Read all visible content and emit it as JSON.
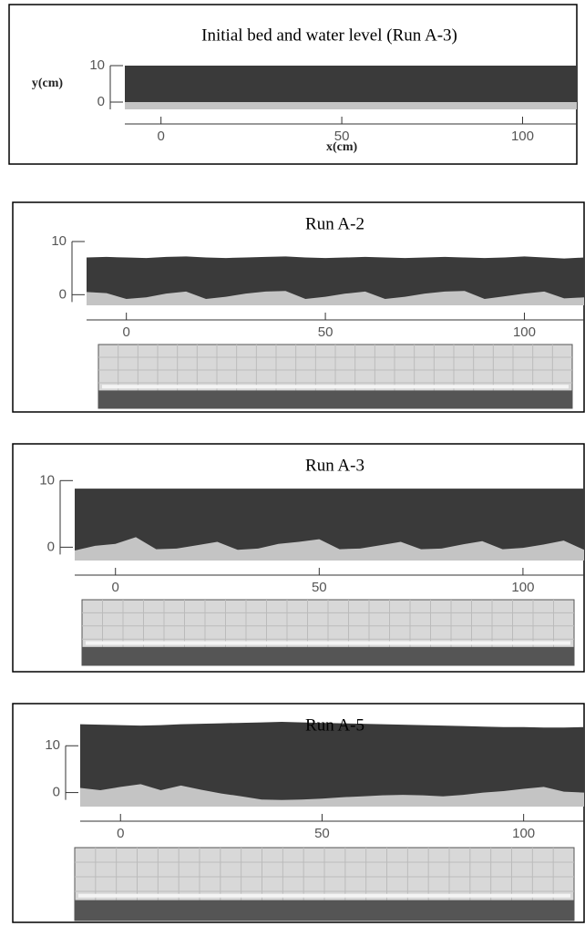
{
  "chart_data": [
    {
      "type": "area",
      "title": "Initial bed and water level (Run A-3)",
      "x_label": "x(cm)",
      "y_label": "y(cm)",
      "x": [
        -10,
        -5,
        0,
        5,
        10,
        15,
        20,
        25,
        30,
        35,
        40,
        45,
        50,
        55,
        60,
        65,
        70,
        75,
        80,
        85,
        90,
        95,
        100,
        105,
        110,
        115
      ],
      "series": [
        {
          "color": "#3a3a3a",
          "values": [
            10,
            10,
            10,
            10,
            10,
            10,
            10,
            10,
            10,
            10,
            10,
            10,
            10,
            10,
            10,
            10,
            10,
            10,
            10,
            10,
            10,
            10,
            10,
            10,
            10,
            10
          ]
        },
        {
          "color": "#c4c4c4",
          "values": [
            0,
            0,
            0,
            0,
            0,
            0,
            0,
            0,
            0,
            0,
            0,
            0,
            0,
            0,
            0,
            0,
            0,
            0,
            0,
            0,
            0,
            0,
            0,
            0,
            0,
            0
          ]
        }
      ],
      "xlim": [
        -10,
        115
      ],
      "ylim": [
        -2,
        10.5
      ],
      "xticks": [
        0,
        50,
        100
      ],
      "yticks": [
        0,
        10
      ]
    },
    {
      "type": "area",
      "title": "Run A-2",
      "x": [
        -10,
        -5,
        0,
        5,
        10,
        15,
        20,
        25,
        30,
        35,
        40,
        45,
        50,
        55,
        60,
        65,
        70,
        75,
        80,
        85,
        90,
        95,
        100,
        105,
        110,
        115
      ],
      "series": [
        {
          "color": "#3a3a3a",
          "values": [
            7,
            7.1,
            7,
            6.9,
            7.1,
            7.2,
            7,
            6.9,
            7,
            7.1,
            7.2,
            7,
            6.9,
            7,
            7.1,
            7,
            6.9,
            7,
            7.1,
            7,
            6.9,
            7,
            7.2,
            7,
            6.8,
            7
          ]
        },
        {
          "color": "#c4c4c4",
          "values": [
            0.5,
            0.3,
            -0.8,
            -0.5,
            0.2,
            0.6,
            -0.8,
            -0.4,
            0.2,
            0.6,
            0.7,
            -0.8,
            -0.4,
            0.2,
            0.6,
            -0.8,
            -0.4,
            0.2,
            0.6,
            0.7,
            -0.8,
            -0.3,
            0.2,
            0.6,
            -0.7,
            -0.5
          ]
        }
      ],
      "xlim": [
        -10,
        115
      ],
      "ylim": [
        -2,
        10
      ],
      "xticks": [
        0,
        50,
        100
      ],
      "yticks": [
        0,
        10
      ]
    },
    {
      "type": "area",
      "title": "Run A-3",
      "x": [
        -10,
        -5,
        0,
        5,
        10,
        15,
        20,
        25,
        30,
        35,
        40,
        45,
        50,
        55,
        60,
        65,
        70,
        75,
        80,
        85,
        90,
        95,
        100,
        105,
        110,
        115
      ],
      "series": [
        {
          "color": "#3a3a3a",
          "values": [
            8.8,
            8.8,
            8.8,
            8.8,
            8.8,
            8.8,
            8.8,
            8.8,
            8.8,
            8.8,
            8.8,
            8.8,
            8.8,
            8.8,
            8.8,
            8.8,
            8.8,
            8.8,
            8.8,
            8.8,
            8.8,
            8.8,
            8.8,
            8.8,
            8.8,
            8.8
          ]
        },
        {
          "color": "#c4c4c4",
          "values": [
            -0.5,
            0.2,
            0.5,
            1.5,
            -0.3,
            -0.2,
            0.3,
            0.8,
            -0.4,
            -0.2,
            0.5,
            0.8,
            1.2,
            -0.3,
            -0.2,
            0.3,
            0.8,
            -0.3,
            -0.2,
            0.4,
            0.9,
            -0.3,
            -0.1,
            0.4,
            1.0,
            -0.4
          ]
        }
      ],
      "xlim": [
        -10,
        115
      ],
      "ylim": [
        -2,
        11
      ],
      "xticks": [
        0,
        50,
        100
      ],
      "yticks": [
        0,
        10
      ]
    },
    {
      "type": "area",
      "title": "Run A-5",
      "x": [
        -10,
        -5,
        0,
        5,
        10,
        15,
        20,
        25,
        30,
        35,
        40,
        45,
        50,
        55,
        60,
        65,
        70,
        75,
        80,
        85,
        90,
        95,
        100,
        105,
        110,
        115
      ],
      "series": [
        {
          "color": "#3a3a3a",
          "values": [
            14.6,
            14.5,
            14.4,
            14.3,
            14.4,
            14.6,
            14.7,
            14.8,
            14.9,
            15,
            15.1,
            15,
            14.9,
            14.8,
            14.7,
            14.6,
            14.5,
            14.4,
            14.3,
            14.2,
            14.1,
            14,
            14,
            13.9,
            13.9,
            14
          ]
        },
        {
          "color": "#c4c4c4",
          "values": [
            1,
            0.5,
            1.2,
            1.8,
            0.5,
            1.5,
            0.6,
            -0.2,
            -0.8,
            -1.5,
            -1.6,
            -1.5,
            -1.3,
            -1,
            -0.8,
            -0.6,
            -0.5,
            -0.6,
            -0.8,
            -0.5,
            0,
            0.3,
            0.8,
            1.2,
            0.2,
            0
          ]
        }
      ],
      "xlim": [
        -10,
        115
      ],
      "ylim": [
        -3,
        15.5
      ],
      "xticks": [
        0,
        50,
        100
      ],
      "yticks": [
        0,
        10
      ]
    }
  ]
}
